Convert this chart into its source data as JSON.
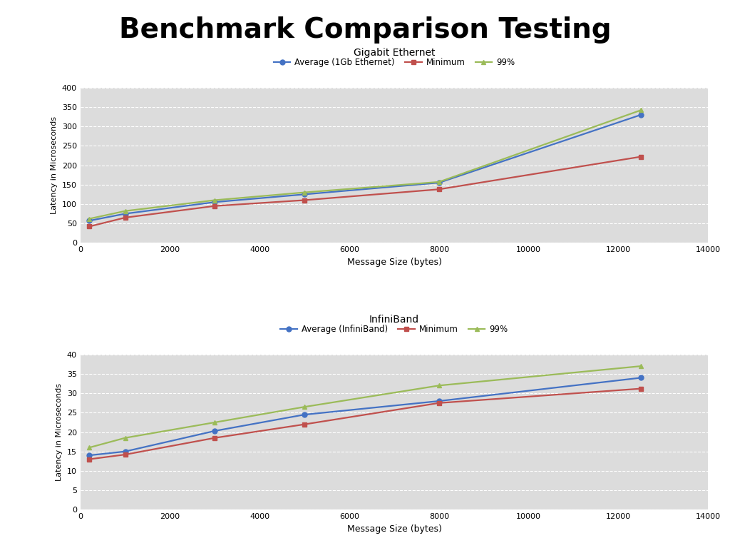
{
  "title": "Benchmark Comparison Testing",
  "title_fontsize": 28,
  "title_fontweight": "bold",
  "chart1_title": "Gigabit Ethernet",
  "chart1_xlabel": "Message Size (bytes)",
  "chart1_ylabel": "Latency in Microseconds",
  "chart1_xlim": [
    0,
    14000
  ],
  "chart1_ylim": [
    0,
    400
  ],
  "chart1_yticks": [
    0,
    50,
    100,
    150,
    200,
    250,
    300,
    350,
    400
  ],
  "chart1_xticks": [
    0,
    2000,
    4000,
    6000,
    8000,
    10000,
    12000,
    14000
  ],
  "ge_x": [
    200,
    1000,
    3000,
    5000,
    8000,
    12500
  ],
  "ge_avg": [
    57,
    75,
    105,
    125,
    155,
    330
  ],
  "ge_min": [
    42,
    65,
    95,
    110,
    138,
    222
  ],
  "ge_p99": [
    62,
    82,
    110,
    130,
    157,
    342
  ],
  "ge_avg_color": "#4472C4",
  "ge_min_color": "#C0504D",
  "ge_p99_color": "#9BBB59",
  "ge_avg_label": "Average (1Gb Ethernet)",
  "ge_min_label": "Minimum",
  "ge_p99_label": "99%",
  "chart2_title": "InfiniBand",
  "chart2_xlabel": "Message Size (bytes)",
  "chart2_ylabel": "Latency in Microseconds",
  "chart2_xlim": [
    0,
    14000
  ],
  "chart2_ylim": [
    0,
    40
  ],
  "chart2_yticks": [
    0,
    5,
    10,
    15,
    20,
    25,
    30,
    35,
    40
  ],
  "chart2_xticks": [
    0,
    2000,
    4000,
    6000,
    8000,
    10000,
    12000,
    14000
  ],
  "ib_x": [
    200,
    1000,
    3000,
    5000,
    8000,
    12500
  ],
  "ib_avg": [
    14.0,
    15.0,
    20.3,
    24.5,
    28.0,
    34.0
  ],
  "ib_min": [
    13.0,
    14.2,
    18.5,
    22.0,
    27.5,
    31.2
  ],
  "ib_p99": [
    16.0,
    18.5,
    22.5,
    26.5,
    32.0,
    37.0
  ],
  "ib_avg_color": "#4472C4",
  "ib_min_color": "#C0504D",
  "ib_p99_color": "#9BBB59",
  "ib_avg_label": "Average (InfiniBand)",
  "ib_min_label": "Minimum",
  "ib_p99_label": "99%",
  "plot_bg_color": "#DCDCDC",
  "marker_size": 5,
  "line_width": 1.6
}
